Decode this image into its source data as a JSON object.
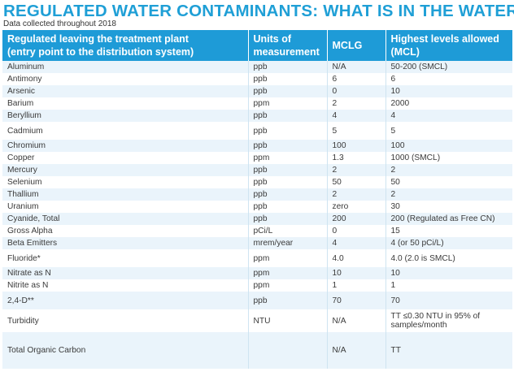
{
  "title": "REGULATED WATER CONTAMINANTS: WHAT IS IN THE WATER?",
  "subtitle": "Data collected throughout 2018",
  "table": {
    "headers": [
      [
        "Regulated leaving the treatment plant",
        "(entry point to the distribution system)"
      ],
      [
        "Units of",
        "measurement"
      ],
      [
        "MCLG"
      ],
      [
        "Highest levels allowed",
        "(MCL)"
      ]
    ],
    "rows": [
      [
        "Aluminum",
        "ppb",
        "N/A",
        "50-200 (SMCL)"
      ],
      [
        "Antimony",
        "ppb",
        "6",
        "6"
      ],
      [
        "Arsenic",
        "ppb",
        "0",
        "10"
      ],
      [
        "Barium",
        "ppm",
        "2",
        "2000"
      ],
      [
        "Beryllium",
        "ppb",
        "4",
        "4"
      ],
      [
        "Cadmium",
        "ppb",
        "5",
        "5"
      ],
      [
        "Chromium",
        "ppb",
        "100",
        "100"
      ],
      [
        "Copper",
        "ppm",
        "1.3",
        "1000 (SMCL)"
      ],
      [
        "Mercury",
        "ppb",
        "2",
        "2"
      ],
      [
        "Selenium",
        "ppb",
        "50",
        "50"
      ],
      [
        "Thallium",
        "ppb",
        "2",
        "2"
      ],
      [
        "Uranium",
        "ppb",
        "zero",
        "30"
      ],
      [
        "Cyanide, Total",
        "ppb",
        "200",
        "200 (Regulated as Free CN)"
      ],
      [
        "Gross Alpha",
        "pCi/L",
        "0",
        "15"
      ],
      [
        "Beta Emitters",
        "mrem/year",
        "4",
        "4 (or 50 pCi/L)"
      ],
      [
        "Fluoride*",
        "ppm",
        "4.0",
        "4.0 (2.0 is SMCL)"
      ],
      [
        "Nitrate as N",
        "ppm",
        "10",
        "10"
      ],
      [
        "Nitrite as N",
        "ppm",
        "1",
        "1"
      ],
      [
        "2,4-D**",
        "ppb",
        "70",
        "70"
      ],
      [
        "Turbidity",
        "NTU",
        "N/A",
        "TT ≤0.30 NTU in 95% of samples/month"
      ],
      [
        "Total Organic Carbon",
        "",
        "N/A",
        "TT"
      ]
    ]
  }
}
